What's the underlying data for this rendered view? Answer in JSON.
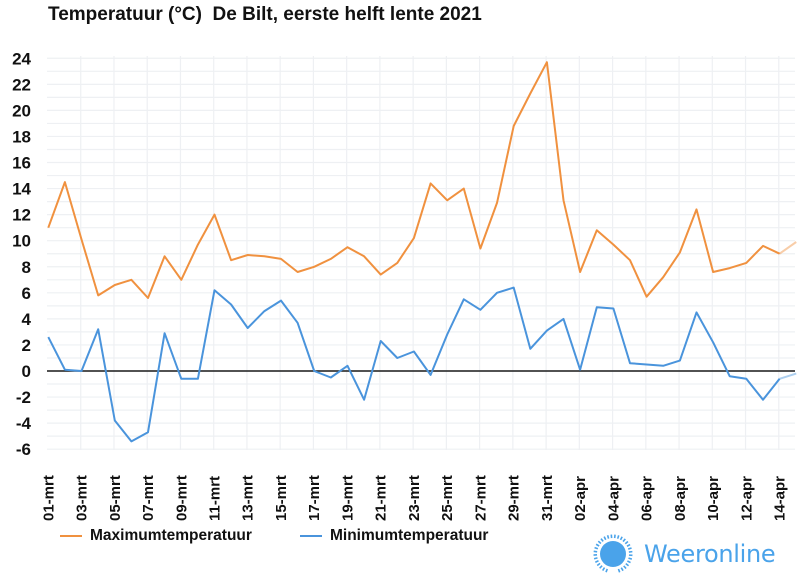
{
  "chart_data": {
    "type": "line",
    "title": "Temperatuur (°C)  De Bilt, eerste helft lente 2021",
    "xlabel": "",
    "ylabel": "",
    "ylim": [
      -6,
      24
    ],
    "yticks": [
      "24",
      "22",
      "20",
      "18",
      "16",
      "14",
      "12",
      "10",
      "8",
      "6",
      "4",
      "2",
      "0",
      "-2",
      "-4",
      "-6"
    ],
    "ytick_values": [
      24,
      22,
      20,
      18,
      16,
      14,
      12,
      10,
      8,
      6,
      4,
      2,
      0,
      -2,
      -4,
      -6
    ],
    "grid": true,
    "legend_position": "bottom-left",
    "x": [
      "01-mrt",
      "02-mrt",
      "03-mrt",
      "04-mrt",
      "05-mrt",
      "06-mrt",
      "07-mrt",
      "08-mrt",
      "09-mrt",
      "10-mrt",
      "11-mrt",
      "12-mrt",
      "13-mrt",
      "14-mrt",
      "15-mrt",
      "16-mrt",
      "17-mrt",
      "18-mrt",
      "19-mrt",
      "20-mrt",
      "21-mrt",
      "22-mrt",
      "23-mrt",
      "24-mrt",
      "25-mrt",
      "26-mrt",
      "27-mrt",
      "28-mrt",
      "29-mrt",
      "30-mrt",
      "31-mrt",
      "01-apr",
      "02-apr",
      "03-apr",
      "04-apr",
      "05-apr",
      "06-apr",
      "07-apr",
      "08-apr",
      "09-apr",
      "10-apr",
      "11-apr",
      "12-apr",
      "13-apr",
      "14-apr",
      "15-apr"
    ],
    "xtick_labels": [
      "01-mrt",
      "03-mrt",
      "05-mrt",
      "07-mrt",
      "09-mrt",
      "11-mrt",
      "13-mrt",
      "15-mrt",
      "17-mrt",
      "19-mrt",
      "21-mrt",
      "23-mrt",
      "25-mrt",
      "27-mrt",
      "29-mrt",
      "31-mrt",
      "02-apr",
      "04-apr",
      "06-apr",
      "08-apr",
      "10-apr",
      "12-apr",
      "14-apr"
    ],
    "series": [
      {
        "name": "Maximumtemperatuur",
        "color": "#f0913f",
        "values": [
          11.0,
          14.5,
          10.1,
          5.8,
          6.6,
          7.0,
          5.6,
          8.8,
          7.0,
          9.7,
          12.0,
          8.5,
          8.9,
          8.8,
          8.6,
          7.6,
          8.0,
          8.6,
          9.5,
          8.8,
          7.4,
          8.3,
          10.2,
          14.4,
          13.1,
          14.0,
          9.4,
          12.9,
          18.8,
          21.3,
          23.7,
          13.1,
          7.6,
          10.8,
          9.7,
          8.5,
          5.7,
          7.2,
          9.1,
          12.4,
          7.6,
          7.9,
          8.3,
          9.6,
          9.0,
          9.9
        ]
      },
      {
        "name": "Minimumtemperatuur",
        "color": "#4a94dc",
        "values": [
          2.6,
          0.1,
          0.0,
          3.2,
          -3.8,
          -5.4,
          -4.7,
          2.9,
          -0.6,
          -0.6,
          6.2,
          5.1,
          3.3,
          4.6,
          5.4,
          3.7,
          0.0,
          -0.5,
          0.4,
          -2.2,
          2.3,
          1.0,
          1.5,
          -0.3,
          2.8,
          5.5,
          4.7,
          6.0,
          6.4,
          1.7,
          3.1,
          4.0,
          0.1,
          4.9,
          4.8,
          0.6,
          0.5,
          0.4,
          0.8,
          4.5,
          2.2,
          -0.4,
          -0.6,
          -2.2,
          -0.6,
          -0.2
        ]
      }
    ]
  },
  "legend": {
    "items": [
      {
        "label": "Maximumtemperatuur",
        "color": "#f0913f"
      },
      {
        "label": "Minimumtemperatuur",
        "color": "#4a94dc"
      }
    ]
  },
  "logo": {
    "text": "Weeronline",
    "color": "#4aa3ea",
    "icon": "sun-icon"
  }
}
